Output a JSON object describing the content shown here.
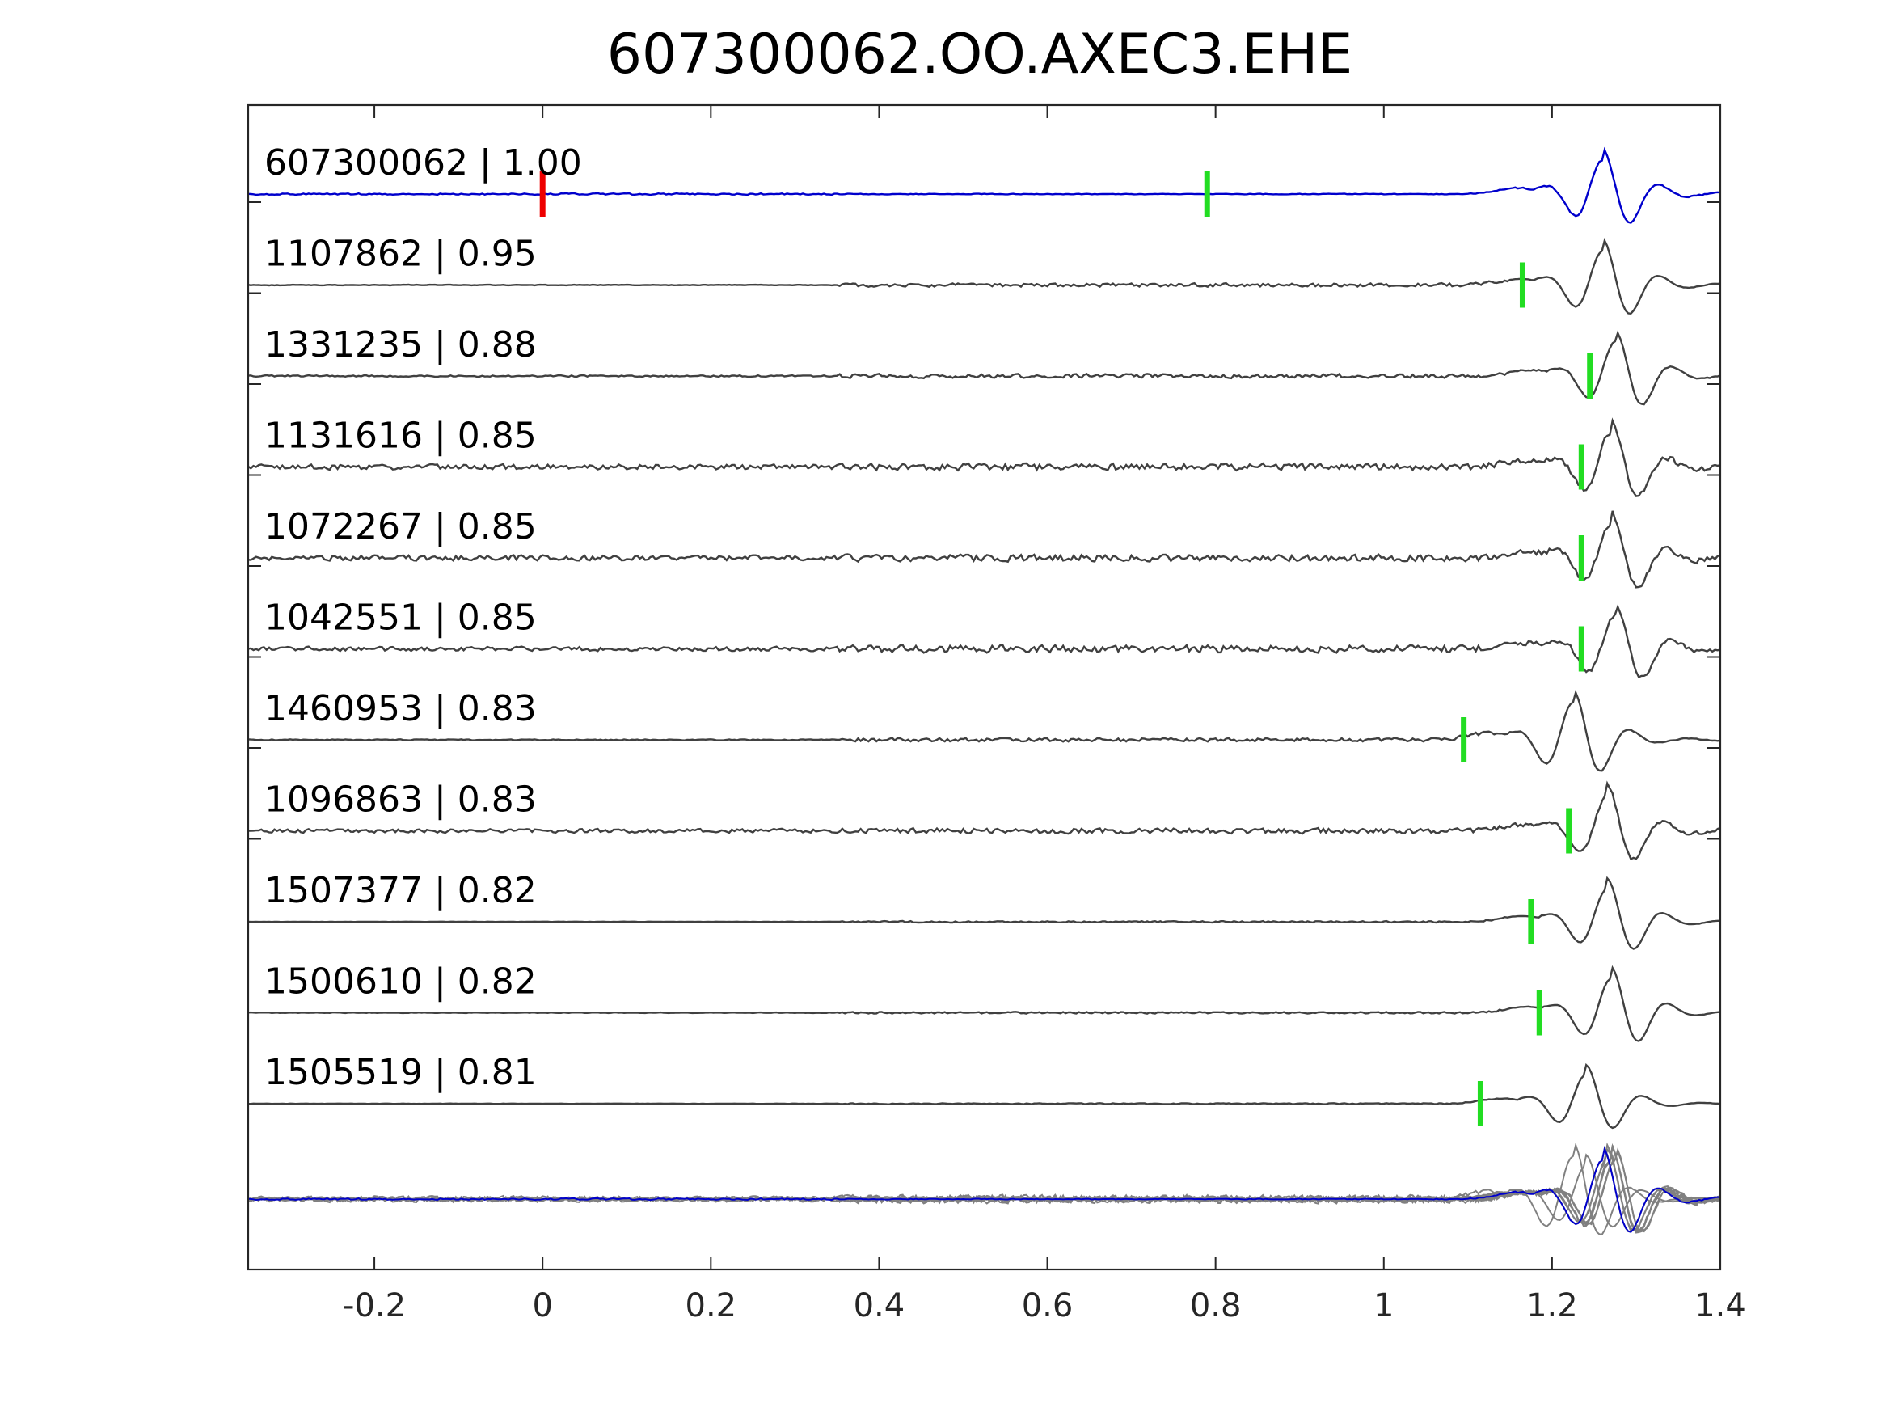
{
  "chart_data": {
    "type": "line",
    "title": "607300062.OO.AXEC3.EHE",
    "xlabel": "",
    "ylabel": "",
    "xlim": [
      -0.35,
      1.4
    ],
    "xticks": [
      -0.2,
      0,
      0.2,
      0.4,
      0.6,
      0.8,
      1,
      1.2,
      1.4
    ],
    "xtick_labels": [
      "-0.2",
      "0",
      "0.2",
      "0.4",
      "0.6",
      "0.8",
      "1",
      "1.2",
      "1.4"
    ],
    "grid": false,
    "colors": {
      "reference_trace": "#0000cc",
      "match_trace": "#404040",
      "overlay_trace": "#808080",
      "reference_marker": "#ee0000",
      "pick_marker": "#22dd22",
      "axes": "#262626"
    },
    "series": [
      {
        "label": "607300062 | 1.00",
        "id": "607300062",
        "cc": 1.0,
        "pick": 0.79,
        "origin_marker": 0,
        "reference": true,
        "amp": 1.0,
        "arrival": 1.26,
        "noise": 0.12,
        "mid_noise": 0.06
      },
      {
        "label": "1107862 | 0.95",
        "id": "1107862",
        "cc": 0.95,
        "pick": 1.165,
        "amp": 1.0,
        "arrival": 1.26,
        "noise": 0.06,
        "mid_noise": 0.28
      },
      {
        "label": "1331235 | 0.88",
        "id": "1331235",
        "cc": 0.88,
        "pick": 1.245,
        "amp": 1.0,
        "arrival": 1.275,
        "noise": 0.12,
        "mid_noise": 0.32
      },
      {
        "label": "1131616 | 0.85",
        "id": "1131616",
        "cc": 0.85,
        "pick": 1.235,
        "amp": 1.0,
        "arrival": 1.27,
        "noise": 0.42,
        "mid_noise": 0.55
      },
      {
        "label": "1072267 | 0.85",
        "id": "1072267",
        "cc": 0.85,
        "pick": 1.235,
        "amp": 1.0,
        "arrival": 1.27,
        "noise": 0.42,
        "mid_noise": 0.55
      },
      {
        "label": "1042551 | 0.85",
        "id": "1042551",
        "cc": 0.85,
        "pick": 1.235,
        "amp": 1.0,
        "arrival": 1.275,
        "noise": 0.34,
        "mid_noise": 0.6
      },
      {
        "label": "1460953 | 0.83",
        "id": "1460953",
        "cc": 0.83,
        "pick": 1.095,
        "amp": 1.1,
        "arrival": 1.225,
        "noise": 0.08,
        "mid_noise": 0.3
      },
      {
        "label": "1096863 | 0.83",
        "id": "1096863",
        "cc": 0.83,
        "pick": 1.22,
        "amp": 1.0,
        "arrival": 1.265,
        "noise": 0.3,
        "mid_noise": 0.42
      },
      {
        "label": "1507377 | 0.82",
        "id": "1507377",
        "cc": 0.82,
        "pick": 1.175,
        "amp": 0.95,
        "arrival": 1.265,
        "noise": 0.03,
        "mid_noise": 0.12
      },
      {
        "label": "1500610 | 0.82",
        "id": "1500610",
        "cc": 0.82,
        "pick": 1.185,
        "amp": 1.0,
        "arrival": 1.27,
        "noise": 0.05,
        "mid_noise": 0.14
      },
      {
        "label": "1505519 | 0.81",
        "id": "1505519",
        "cc": 0.81,
        "pick": 1.115,
        "amp": 0.85,
        "arrival": 1.24,
        "noise": 0.03,
        "mid_noise": 0.08
      }
    ],
    "overlay": {
      "description_visible": false
    }
  }
}
